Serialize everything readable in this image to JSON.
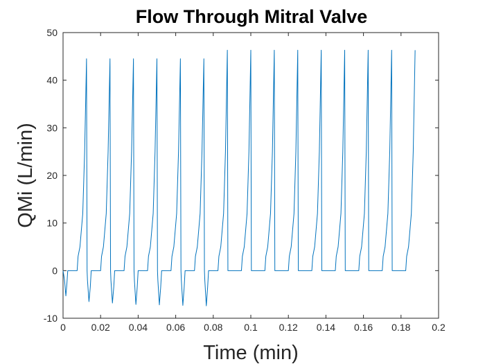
{
  "chart_data": {
    "type": "line",
    "title": "Flow Through Mitral Valve",
    "xlabel": "Time (min)",
    "ylabel": "QMi (L/min)",
    "xlim": [
      0,
      0.2
    ],
    "ylim": [
      -10,
      50
    ],
    "xticks": [
      "0",
      "0.02",
      "0.04",
      "0.06",
      "0.08",
      "0.1",
      "0.12",
      "0.14",
      "0.16",
      "0.18",
      "0.2"
    ],
    "yticks": [
      "-10",
      "0",
      "10",
      "20",
      "30",
      "40",
      "50"
    ],
    "grid": false,
    "box": true,
    "line_color": "#0072BD",
    "series": [
      {
        "values": [
          [
            0.0,
            0
          ],
          [
            0.0008,
            -2
          ],
          [
            0.0015,
            -5.3
          ],
          [
            0.002,
            -3
          ],
          [
            0.0025,
            0
          ],
          [
            0.0075,
            0
          ],
          [
            0.008,
            3
          ],
          [
            0.009,
            5
          ],
          [
            0.0105,
            12
          ],
          [
            0.0115,
            25
          ],
          [
            0.0125,
            44.5
          ],
          [
            0.0128,
            0
          ],
          [
            0.013,
            -2
          ],
          [
            0.0138,
            -6.5
          ],
          [
            0.0145,
            -3.5
          ],
          [
            0.015,
            0
          ],
          [
            0.02,
            0
          ],
          [
            0.0205,
            3
          ],
          [
            0.0215,
            5
          ],
          [
            0.023,
            12
          ],
          [
            0.024,
            25
          ],
          [
            0.025,
            44.5
          ],
          [
            0.0253,
            0
          ],
          [
            0.0255,
            -2
          ],
          [
            0.0263,
            -6.8
          ],
          [
            0.027,
            -3.5
          ],
          [
            0.0275,
            0
          ],
          [
            0.0325,
            0
          ],
          [
            0.033,
            3
          ],
          [
            0.034,
            5
          ],
          [
            0.0355,
            12
          ],
          [
            0.0365,
            25
          ],
          [
            0.0375,
            44.5
          ],
          [
            0.0378,
            0
          ],
          [
            0.038,
            -2
          ],
          [
            0.0388,
            -7.1
          ],
          [
            0.0395,
            -3.5
          ],
          [
            0.04,
            0
          ],
          [
            0.045,
            0
          ],
          [
            0.0455,
            3
          ],
          [
            0.0465,
            5
          ],
          [
            0.048,
            12
          ],
          [
            0.049,
            25
          ],
          [
            0.05,
            44.5
          ],
          [
            0.0503,
            0
          ],
          [
            0.0505,
            -2
          ],
          [
            0.0513,
            -7.2
          ],
          [
            0.052,
            -3.5
          ],
          [
            0.0525,
            0
          ],
          [
            0.0575,
            0
          ],
          [
            0.058,
            3
          ],
          [
            0.059,
            5
          ],
          [
            0.0605,
            12
          ],
          [
            0.0615,
            25
          ],
          [
            0.0625,
            44.5
          ],
          [
            0.0628,
            0
          ],
          [
            0.063,
            -2
          ],
          [
            0.0638,
            -7.3
          ],
          [
            0.0645,
            -3.5
          ],
          [
            0.065,
            0
          ],
          [
            0.07,
            0
          ],
          [
            0.0705,
            3
          ],
          [
            0.0715,
            5
          ],
          [
            0.073,
            12
          ],
          [
            0.074,
            25
          ],
          [
            0.075,
            44.5
          ],
          [
            0.0753,
            0
          ],
          [
            0.0755,
            -2
          ],
          [
            0.0763,
            -7.4
          ],
          [
            0.077,
            -3.5
          ],
          [
            0.0775,
            0
          ],
          [
            0.0825,
            0
          ],
          [
            0.083,
            3
          ],
          [
            0.084,
            5
          ],
          [
            0.0855,
            12
          ],
          [
            0.0865,
            25
          ],
          [
            0.0875,
            46.3
          ],
          [
            0.0878,
            0
          ],
          [
            0.095,
            0
          ],
          [
            0.0955,
            3
          ],
          [
            0.0965,
            5
          ],
          [
            0.098,
            12
          ],
          [
            0.099,
            25
          ],
          [
            0.1,
            46.3
          ],
          [
            0.1003,
            0
          ],
          [
            0.1075,
            0
          ],
          [
            0.108,
            3
          ],
          [
            0.109,
            5
          ],
          [
            0.1105,
            12
          ],
          [
            0.1115,
            25
          ],
          [
            0.1125,
            46.3
          ],
          [
            0.1128,
            0
          ],
          [
            0.12,
            0
          ],
          [
            0.1205,
            3
          ],
          [
            0.1215,
            5
          ],
          [
            0.123,
            12
          ],
          [
            0.124,
            25
          ],
          [
            0.125,
            46.3
          ],
          [
            0.1253,
            0
          ],
          [
            0.1325,
            0
          ],
          [
            0.133,
            3
          ],
          [
            0.134,
            5
          ],
          [
            0.1355,
            12
          ],
          [
            0.1365,
            25
          ],
          [
            0.1375,
            46.3
          ],
          [
            0.1378,
            0
          ],
          [
            0.145,
            0
          ],
          [
            0.1455,
            3
          ],
          [
            0.1465,
            5
          ],
          [
            0.148,
            12
          ],
          [
            0.149,
            25
          ],
          [
            0.15,
            46.3
          ],
          [
            0.1503,
            0
          ],
          [
            0.1575,
            0
          ],
          [
            0.158,
            3
          ],
          [
            0.159,
            5
          ],
          [
            0.1605,
            12
          ],
          [
            0.1615,
            25
          ],
          [
            0.1625,
            46.3
          ],
          [
            0.1628,
            0
          ],
          [
            0.17,
            0
          ],
          [
            0.1705,
            3
          ],
          [
            0.1715,
            5
          ],
          [
            0.173,
            12
          ],
          [
            0.174,
            25
          ],
          [
            0.175,
            46.3
          ],
          [
            0.1753,
            0
          ],
          [
            0.1825,
            0
          ],
          [
            0.183,
            3
          ],
          [
            0.184,
            5
          ],
          [
            0.1855,
            12
          ],
          [
            0.1865,
            25
          ],
          [
            0.1875,
            46.3
          ]
        ]
      }
    ]
  }
}
